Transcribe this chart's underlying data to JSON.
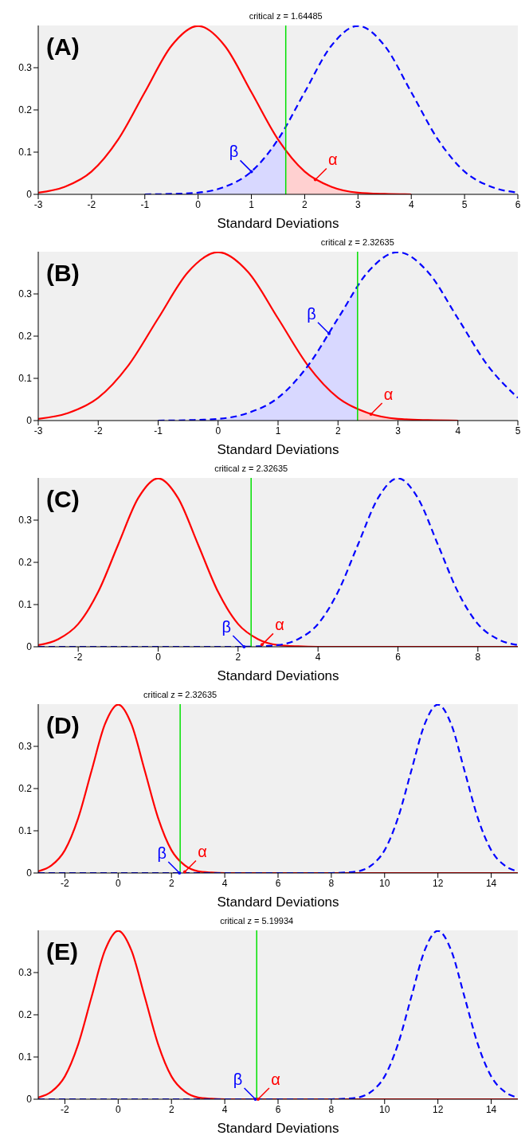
{
  "chart_data": [
    {
      "type": "line",
      "xlabel": "Standard Deviations",
      "xlim": [
        -3,
        6
      ],
      "xticks": [
        -3,
        -2,
        -1,
        0,
        1,
        2,
        3,
        4,
        5,
        6
      ],
      "ylim": [
        0,
        0.4
      ],
      "yticks": [
        0,
        0.1,
        0.2,
        0.3
      ],
      "legend": false,
      "marker": "none",
      "series": [
        {
          "type": "area",
          "color": "#d8d8ff",
          "x": [
            -0.5,
            0,
            0.5,
            1,
            1.5,
            1.64485
          ],
          "values": [
            0.001,
            0.004,
            0.018,
            0.054,
            0.13,
            0.159
          ]
        },
        {
          "type": "area",
          "color": "#ffd0d0",
          "x": [
            1.64485,
            2,
            2.5,
            3,
            3.5,
            4
          ],
          "values": [
            0.103,
            0.054,
            0.018,
            0.004,
            0.001,
            0
          ]
        },
        {
          "color": "#ff0000",
          "line_style": "solid",
          "x": [
            -3,
            -2.5,
            -2,
            -1.5,
            -1,
            -0.5,
            0,
            0.5,
            1,
            1.5,
            2,
            2.5,
            3,
            3.5,
            4
          ],
          "values": [
            0.004,
            0.018,
            0.054,
            0.13,
            0.242,
            0.352,
            0.399,
            0.352,
            0.242,
            0.13,
            0.054,
            0.018,
            0.004,
            0.001,
            0
          ]
        },
        {
          "color": "#0000ff",
          "line_style": "dashed",
          "x": [
            -1,
            -0.5,
            0,
            0.5,
            1,
            1.5,
            2,
            2.5,
            3,
            3.5,
            4,
            4.5,
            5,
            5.5,
            6
          ],
          "values": [
            0,
            0.001,
            0.004,
            0.018,
            0.054,
            0.13,
            0.242,
            0.352,
            0.399,
            0.352,
            0.242,
            0.13,
            0.054,
            0.018,
            0.004
          ]
        }
      ],
      "ref_lines": [
        {
          "axis": "x",
          "value": 1.64485,
          "label": "critical z = 1.64485",
          "color": "#00e000"
        }
      ],
      "annotations": [
        "(A)",
        {
          "text": "β",
          "x": 1,
          "y": 0.054
        },
        {
          "text": "α",
          "x": 2.2,
          "y": 0.035
        }
      ]
    },
    {
      "type": "line",
      "xlabel": "Standard Deviations",
      "xlim": [
        -3,
        5
      ],
      "xticks": [
        -3,
        -2,
        -1,
        0,
        1,
        2,
        3,
        4,
        5
      ],
      "ylim": [
        0,
        0.4
      ],
      "yticks": [
        0,
        0.1,
        0.2,
        0.3
      ],
      "legend": false,
      "marker": "none",
      "series": [
        {
          "type": "area",
          "color": "#d8d8ff",
          "x": [
            -0.5,
            0,
            0.5,
            1,
            1.5,
            2,
            2.32635
          ],
          "values": [
            0.001,
            0.004,
            0.018,
            0.054,
            0.13,
            0.242,
            0.318
          ]
        },
        {
          "type": "area",
          "color": "#ffd0d0",
          "x": [
            2.32635,
            2.5,
            3,
            3.5,
            4
          ],
          "values": [
            0.027,
            0.018,
            0.004,
            0.001,
            0
          ]
        },
        {
          "color": "#ff0000",
          "line_style": "solid",
          "x": [
            -3,
            -2.5,
            -2,
            -1.5,
            -1,
            -0.5,
            0,
            0.5,
            1,
            1.5,
            2,
            2.5,
            3,
            3.5,
            4
          ],
          "values": [
            0.004,
            0.018,
            0.054,
            0.13,
            0.242,
            0.352,
            0.399,
            0.352,
            0.242,
            0.13,
            0.054,
            0.018,
            0.004,
            0.001,
            0
          ]
        },
        {
          "color": "#0000ff",
          "line_style": "dashed",
          "x": [
            -1,
            -0.5,
            0,
            0.5,
            1,
            1.5,
            2,
            2.5,
            3,
            3.5,
            4,
            4.5,
            5
          ],
          "values": [
            0,
            0.001,
            0.004,
            0.018,
            0.054,
            0.13,
            0.242,
            0.352,
            0.399,
            0.352,
            0.242,
            0.13,
            0.054
          ]
        }
      ],
      "ref_lines": [
        {
          "axis": "x",
          "value": 2.32635,
          "label": "critical z = 2.32635",
          "color": "#00e000"
        }
      ],
      "annotations": [
        "(B)",
        {
          "text": "β",
          "x": 1.85,
          "y": 0.206
        },
        {
          "text": "α",
          "x": 2.55,
          "y": 0.015
        }
      ]
    },
    {
      "type": "line",
      "xlabel": "Standard Deviations",
      "xlim": [
        -3,
        9
      ],
      "xticks": [
        -2,
        0,
        2,
        4,
        6,
        8
      ],
      "ylim": [
        0,
        0.4
      ],
      "yticks": [
        0,
        0.1,
        0.2,
        0.3
      ],
      "legend": false,
      "marker": "none",
      "series": [
        {
          "color": "#ff0000",
          "line_style": "solid",
          "x": [
            -3,
            -2.5,
            -2,
            -1.5,
            -1,
            -0.5,
            0,
            0.5,
            1,
            1.5,
            2,
            2.5,
            3,
            3.5,
            4,
            9
          ],
          "values": [
            0.004,
            0.018,
            0.054,
            0.13,
            0.242,
            0.352,
            0.399,
            0.352,
            0.242,
            0.13,
            0.054,
            0.018,
            0.004,
            0.001,
            0,
            0
          ]
        },
        {
          "color": "#0000ff",
          "line_style": "dashed",
          "x": [
            -3,
            2,
            2.5,
            3,
            3.5,
            4,
            4.5,
            5,
            5.5,
            6,
            6.5,
            7,
            7.5,
            8,
            8.5,
            9
          ],
          "values": [
            0,
            0,
            0.001,
            0.004,
            0.018,
            0.054,
            0.13,
            0.242,
            0.352,
            0.399,
            0.352,
            0.242,
            0.13,
            0.054,
            0.018,
            0.004
          ]
        }
      ],
      "ref_lines": [
        {
          "axis": "x",
          "value": 2.32635,
          "label": "critical z = 2.32635",
          "color": "#00e000"
        }
      ],
      "annotations": [
        "(C)",
        {
          "text": "β",
          "x": 2.15,
          "y": 0
        },
        {
          "text": "α",
          "x": 2.6,
          "y": 0.005
        }
      ]
    },
    {
      "type": "line",
      "xlabel": "Standard Deviations",
      "xlim": [
        -3,
        15
      ],
      "xticks": [
        -2,
        0,
        2,
        4,
        6,
        8,
        10,
        12,
        14
      ],
      "ylim": [
        0,
        0.4
      ],
      "yticks": [
        0,
        0.1,
        0.2,
        0.3
      ],
      "legend": false,
      "marker": "none",
      "series": [
        {
          "color": "#ff0000",
          "line_style": "solid",
          "x": [
            -3,
            -2.5,
            -2,
            -1.5,
            -1,
            -0.5,
            0,
            0.5,
            1,
            1.5,
            2,
            2.5,
            3,
            3.5,
            4,
            15
          ],
          "values": [
            0.004,
            0.018,
            0.054,
            0.13,
            0.242,
            0.352,
            0.399,
            0.352,
            0.242,
            0.13,
            0.054,
            0.018,
            0.004,
            0.001,
            0,
            0
          ]
        },
        {
          "color": "#0000ff",
          "line_style": "dashed",
          "x": [
            -3,
            8,
            8.5,
            9,
            9.5,
            10,
            10.5,
            11,
            11.5,
            12,
            12.5,
            13,
            13.5,
            14,
            14.5,
            15
          ],
          "values": [
            0,
            0,
            0.001,
            0.004,
            0.018,
            0.054,
            0.13,
            0.242,
            0.352,
            0.399,
            0.352,
            0.242,
            0.13,
            0.054,
            0.018,
            0.004
          ]
        }
      ],
      "ref_lines": [
        {
          "axis": "x",
          "value": 2.32635,
          "label": "critical z = 2.32635",
          "color": "#00e000"
        }
      ],
      "annotations": [
        "(D)",
        {
          "text": "β",
          "x": 2.3,
          "y": 0
        },
        {
          "text": "α",
          "x": 2.5,
          "y": 0.003
        }
      ]
    },
    {
      "type": "line",
      "xlabel": "Standard Deviations",
      "xlim": [
        -3,
        15
      ],
      "xticks": [
        -2,
        0,
        2,
        4,
        6,
        8,
        10,
        12,
        14
      ],
      "ylim": [
        0,
        0.4
      ],
      "yticks": [
        0,
        0.1,
        0.2,
        0.3
      ],
      "legend": false,
      "marker": "none",
      "series": [
        {
          "color": "#ff0000",
          "line_style": "solid",
          "x": [
            -3,
            -2.5,
            -2,
            -1.5,
            -1,
            -0.5,
            0,
            0.5,
            1,
            1.5,
            2,
            2.5,
            3,
            3.5,
            4,
            15
          ],
          "values": [
            0.004,
            0.018,
            0.054,
            0.13,
            0.242,
            0.352,
            0.399,
            0.352,
            0.242,
            0.13,
            0.054,
            0.018,
            0.004,
            0.001,
            0,
            0
          ]
        },
        {
          "color": "#0000ff",
          "line_style": "dashed",
          "x": [
            -3,
            8,
            8.5,
            9,
            9.5,
            10,
            10.5,
            11,
            11.5,
            12,
            12.5,
            13,
            13.5,
            14,
            14.5,
            15
          ],
          "values": [
            0,
            0,
            0.001,
            0.004,
            0.018,
            0.054,
            0.13,
            0.242,
            0.352,
            0.399,
            0.352,
            0.242,
            0.13,
            0.054,
            0.018,
            0.004
          ]
        }
      ],
      "ref_lines": [
        {
          "axis": "x",
          "value": 5.19934,
          "label": "critical z = 5.19934",
          "color": "#00e000"
        }
      ],
      "annotations": [
        "(E)",
        {
          "text": "β",
          "x": 5.15,
          "y": 0
        },
        {
          "text": "α",
          "x": 5.25,
          "y": 0
        }
      ]
    }
  ]
}
